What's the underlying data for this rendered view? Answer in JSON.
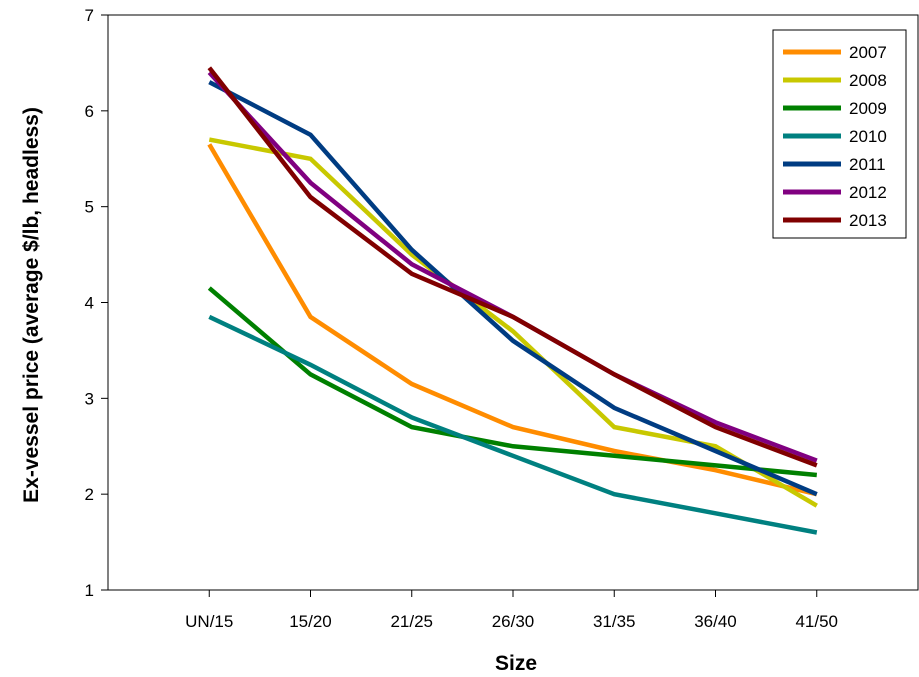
{
  "chart_data": {
    "type": "line",
    "title": "",
    "xlabel": "Size",
    "ylabel": "Ex-vessel price (average $/lb, headless)",
    "categories": [
      "UN/15",
      "15/20",
      "21/25",
      "26/30",
      "31/35",
      "36/40",
      "41/50"
    ],
    "ylim": [
      1,
      7
    ],
    "yticks": [
      1,
      2,
      3,
      4,
      5,
      6,
      7
    ],
    "grid": false,
    "legend_position": "top-right",
    "series": [
      {
        "name": "2007",
        "color": "#ff8c00",
        "values": [
          5.65,
          3.85,
          3.15,
          2.7,
          2.45,
          2.25,
          2.0
        ]
      },
      {
        "name": "2008",
        "color": "#c8c800",
        "values": [
          5.7,
          5.5,
          4.5,
          3.7,
          2.7,
          2.5,
          1.88
        ]
      },
      {
        "name": "2009",
        "color": "#008000",
        "values": [
          4.15,
          3.25,
          2.7,
          2.5,
          2.4,
          2.3,
          2.2
        ]
      },
      {
        "name": "2010",
        "color": "#008080",
        "values": [
          3.85,
          3.35,
          2.8,
          2.4,
          2.0,
          1.8,
          1.6
        ]
      },
      {
        "name": "2011",
        "color": "#003c82",
        "values": [
          6.3,
          5.75,
          4.55,
          3.6,
          2.9,
          2.45,
          2.0
        ]
      },
      {
        "name": "2012",
        "color": "#800080",
        "values": [
          6.4,
          5.25,
          4.4,
          3.85,
          3.25,
          2.75,
          2.35
        ]
      },
      {
        "name": "2013",
        "color": "#800000",
        "values": [
          6.45,
          5.1,
          4.3,
          3.85,
          3.25,
          2.7,
          2.3
        ]
      }
    ]
  }
}
